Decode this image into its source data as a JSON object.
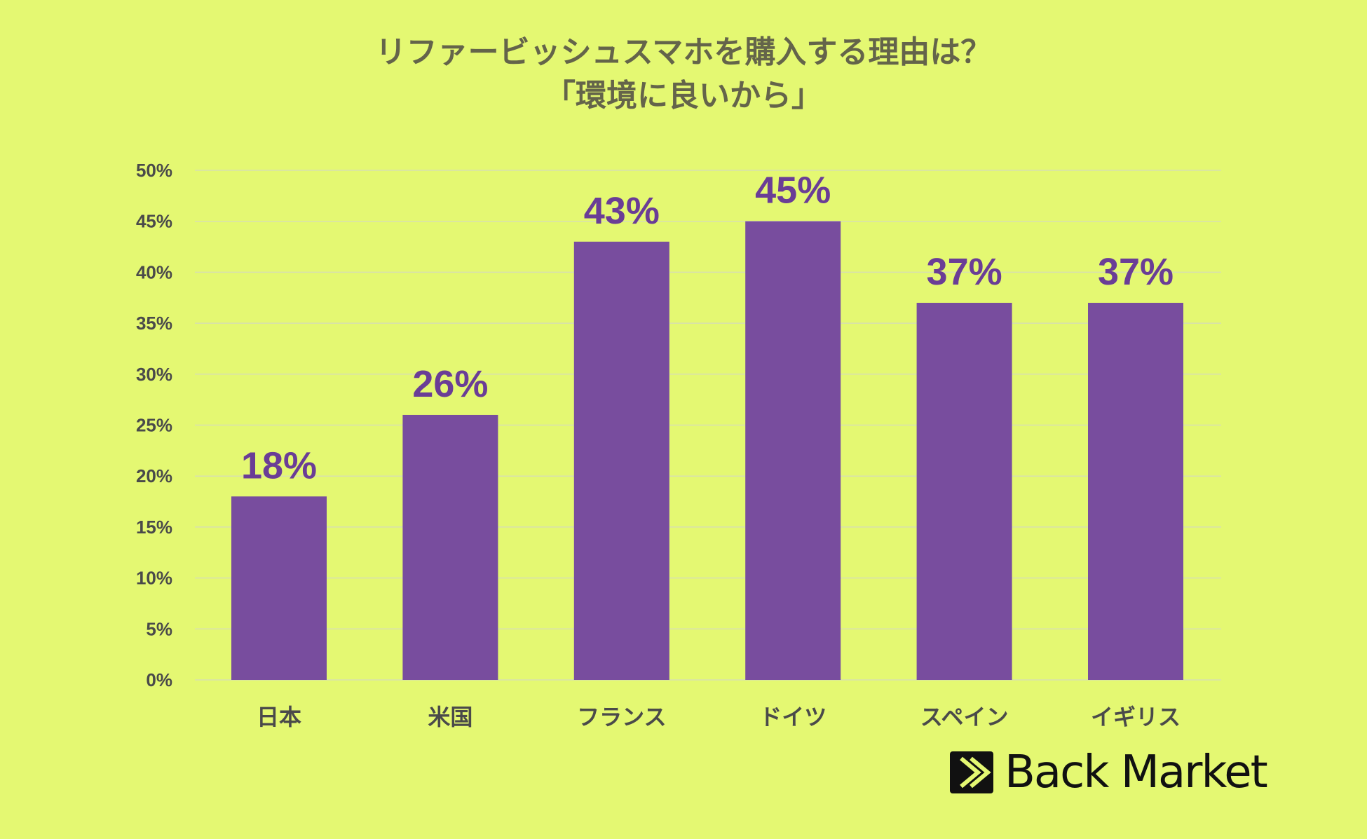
{
  "chart_data": {
    "type": "bar",
    "title_lines": [
      "リファービッシュスマホを購入する理由は？",
      "「環境に良いから」"
    ],
    "categories": [
      "日本",
      "米国",
      "フランス",
      "ドイツ",
      "スペイン",
      "イギリス"
    ],
    "values": [
      18,
      26,
      43,
      45,
      37,
      37
    ],
    "data_labels": [
      "18%",
      "26%",
      "43%",
      "45%",
      "37%",
      "37%"
    ],
    "y_ticks": [
      "0%",
      "5%",
      "10%",
      "15%",
      "20%",
      "25%",
      "30%",
      "35%",
      "40%",
      "45%",
      "50%"
    ],
    "ylim": [
      0,
      50
    ],
    "xlabel": "",
    "ylabel": "",
    "grid": true,
    "legend": "none",
    "colors": {
      "background": "#e4f872",
      "bar": "#784d9e",
      "data_label": "#6a3d96",
      "title": "#64644a",
      "tick_label": "#4a4a4a",
      "grid": "#d7dfb0"
    }
  },
  "brand": {
    "logo_text": "Back Market"
  }
}
